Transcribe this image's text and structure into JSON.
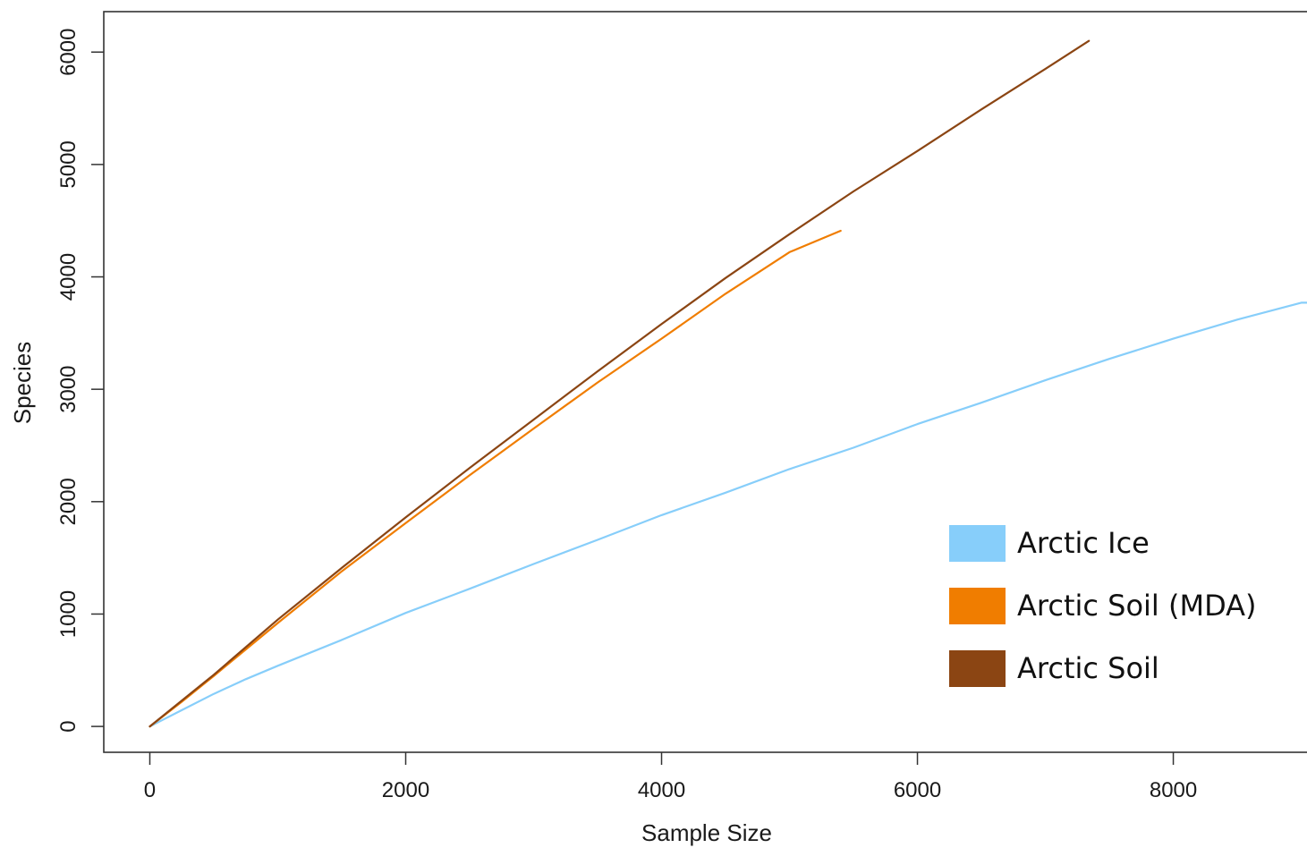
{
  "chart_data": {
    "type": "line",
    "title": "",
    "xlabel": "Sample Size",
    "ylabel": "Species",
    "xlim": [
      -360,
      9080
    ],
    "ylim": [
      -230,
      6360
    ],
    "x_ticks": [
      0,
      2000,
      4000,
      6000,
      8000
    ],
    "y_ticks": [
      0,
      1000,
      2000,
      3000,
      4000,
      5000,
      6000
    ],
    "x_tick_labels": [
      "0",
      "2000",
      "4000",
      "6000",
      "8000"
    ],
    "y_tick_labels": [
      "0",
      "1000",
      "2000",
      "3000",
      "4000",
      "5000",
      "6000"
    ],
    "grid": false,
    "legend_position": "bottom-right",
    "series": [
      {
        "name": "Arctic Ice",
        "color": "#87cefa",
        "x": [
          0,
          100,
          250,
          500,
          750,
          1000,
          1500,
          2000,
          2500,
          3000,
          3500,
          4000,
          4500,
          5000,
          5500,
          6000,
          6500,
          7000,
          7500,
          8000,
          8500,
          9000,
          9080
        ],
        "y": [
          0,
          58,
          145,
          290,
          420,
          540,
          770,
          1010,
          1225,
          1445,
          1660,
          1880,
          2080,
          2290,
          2480,
          2690,
          2880,
          3080,
          3270,
          3450,
          3620,
          3770,
          3770
        ]
      },
      {
        "name": "Arctic Soil (MDA)",
        "color": "#f07d00",
        "x": [
          0,
          250,
          500,
          1000,
          1500,
          2000,
          2500,
          3000,
          3500,
          4000,
          4500,
          5000,
          5400
        ],
        "y": [
          0,
          220,
          450,
          920,
          1380,
          1810,
          2235,
          2650,
          3060,
          3450,
          3850,
          4220,
          4410
        ]
      },
      {
        "name": "Arctic Soil",
        "color": "#8b4513",
        "x": [
          0,
          250,
          500,
          1000,
          1500,
          2000,
          2500,
          3000,
          3500,
          4000,
          4500,
          5000,
          5500,
          6000,
          6500,
          7000,
          7340
        ],
        "y": [
          0,
          230,
          460,
          950,
          1410,
          1860,
          2300,
          2730,
          3160,
          3580,
          3990,
          4380,
          4760,
          5120,
          5490,
          5850,
          6100
        ]
      }
    ]
  }
}
